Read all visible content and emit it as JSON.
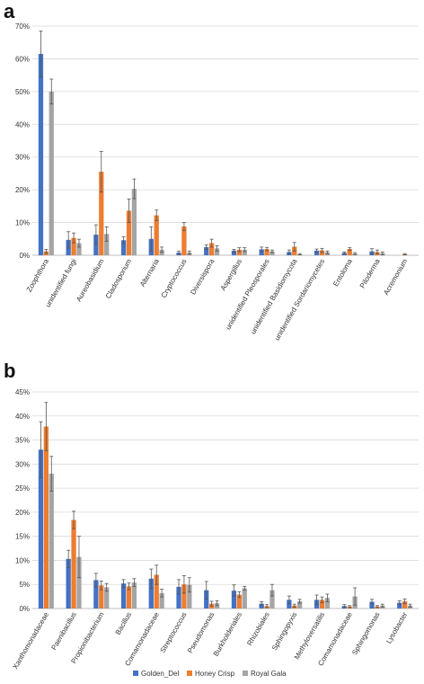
{
  "colors": {
    "Golden_Del": "#4472c4",
    "Honey Crisp": "#ed7d31",
    "Royal Gala": "#a5a5a5"
  },
  "legend": [
    "Golden_Del",
    "Honey Crisp",
    "Royal Gala"
  ],
  "chart_data": [
    {
      "panel": "a",
      "type": "bar",
      "ylim": [
        0,
        70
      ],
      "yticks": [
        0,
        10,
        20,
        30,
        40,
        50,
        60,
        70
      ],
      "ytick_labels": [
        "0%",
        "10%",
        "20%",
        "30%",
        "40%",
        "50%",
        "60%",
        "70%"
      ],
      "grid": true,
      "legend": "none",
      "categories": [
        "Zoophthora",
        "unidentified fungi",
        "Aureobasidium",
        "Cladosporium",
        "Alternaria",
        "Cryptococcus",
        "Diversispora",
        "Aspergillus",
        "unidentified Pleosporales",
        "unidentified Basidiomycota",
        "unidentified Sordariomycetes",
        "Entoloma",
        "Piloderma",
        "Acremonium"
      ],
      "series": [
        {
          "name": "Golden_Del",
          "values": [
            61.5,
            4.7,
            6.3,
            4.6,
            5.0,
            0.8,
            2.5,
            1.4,
            1.8,
            1.0,
            1.4,
            0.7,
            1.2,
            0.0
          ],
          "errors": [
            7.0,
            2.5,
            3.0,
            1.0,
            3.7,
            0.5,
            0.7,
            0.4,
            0.7,
            0.6,
            0.5,
            0.3,
            0.8,
            0.0
          ]
        },
        {
          "name": "Honey Crisp",
          "values": [
            1.2,
            5.3,
            25.5,
            13.6,
            12.2,
            8.8,
            3.7,
            1.7,
            1.9,
            2.6,
            1.5,
            1.9,
            1.0,
            0.3
          ],
          "errors": [
            0.6,
            1.5,
            6.2,
            3.6,
            1.6,
            1.2,
            1.2,
            0.6,
            0.5,
            1.3,
            0.6,
            0.4,
            0.6,
            0.2
          ]
        },
        {
          "name": "Royal Gala",
          "values": [
            50.0,
            3.7,
            6.5,
            20.3,
            1.7,
            0.8,
            2.1,
            1.7,
            1.2,
            0.3,
            0.9,
            0.5,
            0.6,
            0.0
          ],
          "errors": [
            3.8,
            1.2,
            2.2,
            3.0,
            0.8,
            0.5,
            0.8,
            0.6,
            0.4,
            0.2,
            0.4,
            0.3,
            0.4,
            0.0
          ]
        }
      ]
    },
    {
      "panel": "b",
      "type": "bar",
      "ylim": [
        0,
        45
      ],
      "yticks": [
        0,
        5,
        10,
        15,
        20,
        25,
        30,
        35,
        40,
        45
      ],
      "ytick_labels": [
        "0%",
        "5%",
        "10%",
        "15%",
        "20%",
        "25%",
        "30%",
        "35%",
        "40%",
        "45%"
      ],
      "grid": true,
      "legend": "bottom",
      "categories": [
        "Xanthomonadaceae",
        "Paenibacillus",
        "Propionibacterium",
        "Bacillus",
        "Comamonadaceae",
        "Streptococcus",
        "Pseudomonas",
        "Burkholderiales",
        "Rhizobiales",
        "Sphingopyxis",
        "Methyloversatilis",
        "Comamonadaceae",
        "Sphingomonas",
        "Lysobacter"
      ],
      "series": [
        {
          "name": "Golden_Del",
          "values": [
            33.0,
            10.3,
            5.9,
            5.2,
            6.2,
            4.5,
            3.8,
            3.7,
            1.0,
            1.8,
            1.8,
            0.5,
            1.4,
            1.2
          ],
          "errors": [
            5.8,
            1.8,
            1.4,
            0.8,
            2.0,
            1.5,
            1.8,
            1.2,
            0.4,
            0.8,
            1.0,
            0.3,
            0.5,
            0.4
          ]
        },
        {
          "name": "Honey Crisp",
          "values": [
            37.8,
            18.4,
            4.8,
            4.6,
            7.0,
            5.0,
            1.0,
            2.9,
            0.5,
            0.6,
            1.8,
            0.4,
            0.4,
            1.5
          ],
          "errors": [
            5.0,
            1.8,
            0.9,
            0.7,
            2.0,
            1.8,
            0.5,
            0.6,
            0.3,
            0.3,
            0.6,
            0.2,
            0.2,
            0.5
          ]
        },
        {
          "name": "Royal Gala",
          "values": [
            28.0,
            10.7,
            4.4,
            5.4,
            3.2,
            4.9,
            1.1,
            4.2,
            3.8,
            1.5,
            2.2,
            2.5,
            0.6,
            0.6
          ],
          "errors": [
            3.6,
            4.3,
            0.8,
            0.8,
            0.8,
            1.5,
            0.5,
            0.4,
            1.2,
            0.4,
            0.8,
            1.8,
            0.3,
            0.3
          ]
        }
      ]
    }
  ]
}
